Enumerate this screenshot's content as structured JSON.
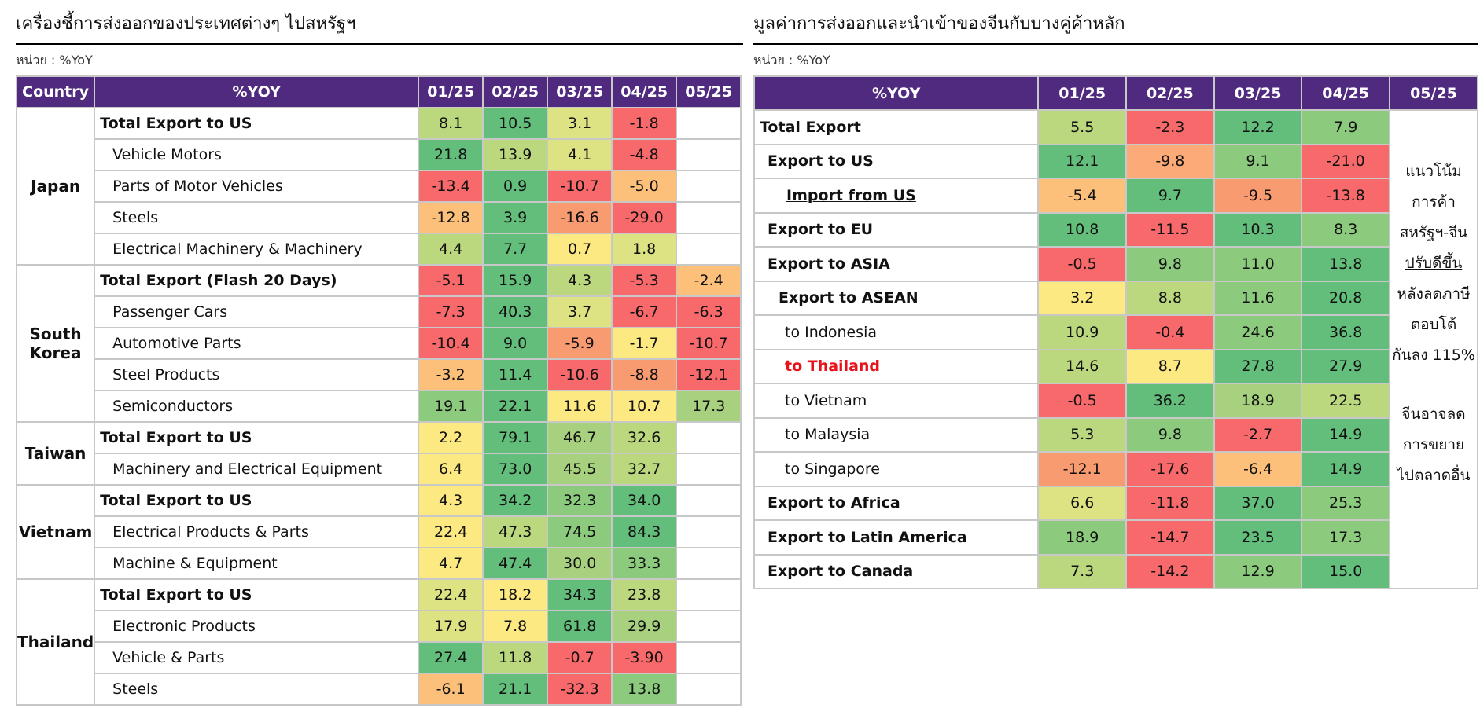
{
  "colors": {
    "header_bg": "#4f2a7f",
    "dark_green": "#63be7b",
    "green": "#8ccb7e",
    "light_green": "#bcd87f",
    "yellow_green": "#dde283",
    "yellow": "#fde982",
    "light_orange": "#fcc07b",
    "orange": "#f99b71",
    "red": "#f8696b"
  },
  "left": {
    "title": "เครื่องชี้การส่งออกของประเทศต่างๆ ไปสหรัฐฯ",
    "unit": "หน่วย : %YoY",
    "headers": [
      "Country",
      "%YOY",
      "01/25",
      "02/25",
      "03/25",
      "04/25",
      "05/25"
    ],
    "groups": [
      {
        "country": "Japan",
        "rows": [
          {
            "label": "Total Export to US",
            "bold": true,
            "values": [
              "8.1",
              "10.5",
              "3.1",
              "-1.8",
              ""
            ],
            "colors": [
              "#bcd87f",
              "#63be7b",
              "#dde283",
              "#f8696b",
              "#ffffff"
            ]
          },
          {
            "label": "Vehicle Motors",
            "bold": false,
            "values": [
              "21.8",
              "13.9",
              "4.1",
              "-4.8",
              ""
            ],
            "colors": [
              "#63be7b",
              "#bcd87f",
              "#dde283",
              "#f8696b",
              "#ffffff"
            ]
          },
          {
            "label": "Parts of Motor Vehicles",
            "bold": false,
            "values": [
              "-13.4",
              "0.9",
              "-10.7",
              "-5.0",
              ""
            ],
            "colors": [
              "#f8696b",
              "#63be7b",
              "#f8696b",
              "#fcc07b",
              "#ffffff"
            ]
          },
          {
            "label": "Steels",
            "bold": false,
            "values": [
              "-12.8",
              "3.9",
              "-16.6",
              "-29.0",
              ""
            ],
            "colors": [
              "#fcc07b",
              "#63be7b",
              "#f99b71",
              "#f8696b",
              "#ffffff"
            ]
          },
          {
            "label": "Electrical Machinery & Machinery",
            "bold": false,
            "values": [
              "4.4",
              "7.7",
              "0.7",
              "1.8",
              ""
            ],
            "colors": [
              "#bcd87f",
              "#63be7b",
              "#fde982",
              "#dde283",
              "#ffffff"
            ]
          }
        ]
      },
      {
        "country": "South Korea",
        "rows": [
          {
            "label": "Total Export (Flash 20 Days)",
            "bold": true,
            "values": [
              "-5.1",
              "15.9",
              "4.3",
              "-5.3",
              "-2.4"
            ],
            "colors": [
              "#f8696b",
              "#63be7b",
              "#bcd87f",
              "#f8696b",
              "#fcc07b"
            ]
          },
          {
            "label": "Passenger Cars",
            "bold": false,
            "values": [
              "-7.3",
              "40.3",
              "3.7",
              "-6.7",
              "-6.3"
            ],
            "colors": [
              "#f8696b",
              "#63be7b",
              "#dde283",
              "#f8696b",
              "#f8696b"
            ]
          },
          {
            "label": "Automotive Parts",
            "bold": false,
            "values": [
              "-10.4",
              "9.0",
              "-5.9",
              "-1.7",
              "-10.7"
            ],
            "colors": [
              "#f8696b",
              "#63be7b",
              "#f99b71",
              "#fde982",
              "#f8696b"
            ]
          },
          {
            "label": "Steel Products",
            "bold": false,
            "values": [
              "-3.2",
              "11.4",
              "-10.6",
              "-8.8",
              "-12.1"
            ],
            "colors": [
              "#fcc07b",
              "#63be7b",
              "#f8696b",
              "#f99b71",
              "#f8696b"
            ]
          },
          {
            "label": "Semiconductors",
            "bold": false,
            "values": [
              "19.1",
              "22.1",
              "11.6",
              "10.7",
              "17.3"
            ],
            "colors": [
              "#8ccb7e",
              "#63be7b",
              "#fde982",
              "#fde982",
              "#a7d17e"
            ]
          }
        ]
      },
      {
        "country": "Taiwan",
        "rows": [
          {
            "label": "Total Export to US",
            "bold": true,
            "values": [
              "2.2",
              "79.1",
              "46.7",
              "32.6",
              ""
            ],
            "colors": [
              "#fde982",
              "#63be7b",
              "#a7d17e",
              "#bcd87f",
              "#ffffff"
            ]
          },
          {
            "label": "Machinery and Electrical Equipment",
            "bold": false,
            "values": [
              "6.4",
              "73.0",
              "45.5",
              "32.7",
              ""
            ],
            "colors": [
              "#fde982",
              "#63be7b",
              "#a7d17e",
              "#bcd87f",
              "#ffffff"
            ]
          }
        ]
      },
      {
        "country": "Vietnam",
        "rows": [
          {
            "label": "Total Export to US",
            "bold": true,
            "values": [
              "4.3",
              "34.2",
              "32.3",
              "34.0",
              ""
            ],
            "colors": [
              "#fde982",
              "#63be7b",
              "#8ccb7e",
              "#63be7b",
              "#ffffff"
            ]
          },
          {
            "label": "Electrical Products & Parts",
            "bold": false,
            "values": [
              "22.4",
              "47.3",
              "74.5",
              "84.3",
              ""
            ],
            "colors": [
              "#fde982",
              "#bcd87f",
              "#8ccb7e",
              "#63be7b",
              "#ffffff"
            ]
          },
          {
            "label": "Machine & Equipment",
            "bold": false,
            "values": [
              "4.7",
              "47.4",
              "30.0",
              "33.3",
              ""
            ],
            "colors": [
              "#fde982",
              "#63be7b",
              "#a7d17e",
              "#8ccb7e",
              "#ffffff"
            ]
          }
        ]
      },
      {
        "country": "Thailand",
        "rows": [
          {
            "label": "Total Export to US",
            "bold": true,
            "values": [
              "22.4",
              "18.2",
              "34.3",
              "23.8",
              ""
            ],
            "colors": [
              "#dde283",
              "#fde982",
              "#63be7b",
              "#bcd87f",
              "#ffffff"
            ]
          },
          {
            "label": "Electronic Products",
            "bold": false,
            "values": [
              "17.9",
              "7.8",
              "61.8",
              "29.9",
              ""
            ],
            "colors": [
              "#dde283",
              "#fde982",
              "#63be7b",
              "#a7d17e",
              "#ffffff"
            ]
          },
          {
            "label": "Vehicle & Parts",
            "bold": false,
            "values": [
              "27.4",
              "11.8",
              "-0.7",
              "-3.90",
              ""
            ],
            "colors": [
              "#63be7b",
              "#bcd87f",
              "#f8696b",
              "#f8696b",
              "#ffffff"
            ]
          },
          {
            "label": "Steels",
            "bold": false,
            "values": [
              "-6.1",
              "21.1",
              "-32.3",
              "13.8",
              ""
            ],
            "colors": [
              "#fcc07b",
              "#63be7b",
              "#f8696b",
              "#8ccb7e",
              "#ffffff"
            ]
          }
        ]
      }
    ]
  },
  "right": {
    "title": "มูลค่าการส่งออกและนำเข้าของจีนกับบางคู่ค้าหลัก",
    "unit": "หน่วย : %YoY",
    "headers": [
      "%YOY",
      "01/25",
      "02/25",
      "03/25",
      "04/25",
      "05/25"
    ],
    "rows": [
      {
        "label": "Total Export",
        "style": "bold",
        "indent": 0,
        "values": [
          "5.5",
          "-2.3",
          "12.2",
          "7.9"
        ],
        "colors": [
          "#bcd87f",
          "#f8696b",
          "#63be7b",
          "#8ccb7e"
        ]
      },
      {
        "label": "Export to US",
        "style": "bold",
        "indent": 1,
        "values": [
          "12.1",
          "-9.8",
          "9.1",
          "-21.0"
        ],
        "colors": [
          "#63be7b",
          "#fcaa77",
          "#8ccb7e",
          "#f8696b"
        ]
      },
      {
        "label": "Import from US",
        "style": "bold-underline",
        "indent": 2,
        "values": [
          "-5.4",
          "9.7",
          "-9.5",
          "-13.8"
        ],
        "colors": [
          "#fcc07b",
          "#63be7b",
          "#f99b71",
          "#f8696b"
        ]
      },
      {
        "label": "Export to EU",
        "style": "bold",
        "indent": 1,
        "values": [
          "10.8",
          "-11.5",
          "10.3",
          "8.3"
        ],
        "colors": [
          "#63be7b",
          "#f8696b",
          "#63be7b",
          "#8ccb7e"
        ]
      },
      {
        "label": "Export to ASIA",
        "style": "bold",
        "indent": 1,
        "values": [
          "-0.5",
          "9.8",
          "11.0",
          "13.8"
        ],
        "colors": [
          "#f8696b",
          "#8ccb7e",
          "#8ccb7e",
          "#63be7b"
        ]
      },
      {
        "label": "Export to ASEAN",
        "style": "bold",
        "indent": 3,
        "values": [
          "3.2",
          "8.8",
          "11.6",
          "20.8"
        ],
        "colors": [
          "#fde982",
          "#bcd87f",
          "#8ccb7e",
          "#63be7b"
        ]
      },
      {
        "label": "to Indonesia",
        "style": "normal",
        "indent": 4,
        "values": [
          "10.9",
          "-0.4",
          "24.6",
          "36.8"
        ],
        "colors": [
          "#bcd87f",
          "#f8696b",
          "#8ccb7e",
          "#63be7b"
        ]
      },
      {
        "label": "to Thailand",
        "style": "red",
        "indent": 4,
        "values": [
          "14.6",
          "8.7",
          "27.8",
          "27.9"
        ],
        "colors": [
          "#bcd87f",
          "#fde982",
          "#63be7b",
          "#63be7b"
        ]
      },
      {
        "label": "to Vietnam",
        "style": "normal",
        "indent": 4,
        "values": [
          "-0.5",
          "36.2",
          "18.9",
          "22.5"
        ],
        "colors": [
          "#f8696b",
          "#63be7b",
          "#a7d17e",
          "#bcd87f"
        ]
      },
      {
        "label": "to Malaysia",
        "style": "normal",
        "indent": 4,
        "values": [
          "5.3",
          "9.8",
          "-2.7",
          "14.9"
        ],
        "colors": [
          "#bcd87f",
          "#8ccb7e",
          "#f8696b",
          "#63be7b"
        ]
      },
      {
        "label": "to Singapore",
        "style": "normal",
        "indent": 4,
        "values": [
          "-12.1",
          "-17.6",
          "-6.4",
          "14.9"
        ],
        "colors": [
          "#f99b71",
          "#f8696b",
          "#fcc07b",
          "#63be7b"
        ]
      },
      {
        "label": "Export to Africa",
        "style": "bold",
        "indent": 1,
        "values": [
          "6.6",
          "-11.8",
          "37.0",
          "25.3"
        ],
        "colors": [
          "#dde283",
          "#f8696b",
          "#63be7b",
          "#8ccb7e"
        ]
      },
      {
        "label": "Export to Latin America",
        "style": "bold",
        "indent": 1,
        "values": [
          "18.9",
          "-14.7",
          "23.5",
          "17.3"
        ],
        "colors": [
          "#8ccb7e",
          "#f8696b",
          "#63be7b",
          "#8ccb7e"
        ]
      },
      {
        "label": "Export to Canada",
        "style": "bold",
        "indent": 1,
        "values": [
          "7.3",
          "-14.2",
          "12.9",
          "15.0"
        ],
        "colors": [
          "#bcd87f",
          "#f8696b",
          "#8ccb7e",
          "#63be7b"
        ]
      }
    ],
    "note_lines_1": [
      "แนวโน้ม",
      "การค้า",
      "สหรัฐฯ-จีน",
      "ปรับดีขึ้น",
      "หลังลดภาษี",
      "ตอบโต้",
      "กันลง 115%"
    ],
    "note_lines_2": [
      "จีนอาจลด",
      "การขยาย",
      "ไปตลาดอื่น"
    ]
  }
}
